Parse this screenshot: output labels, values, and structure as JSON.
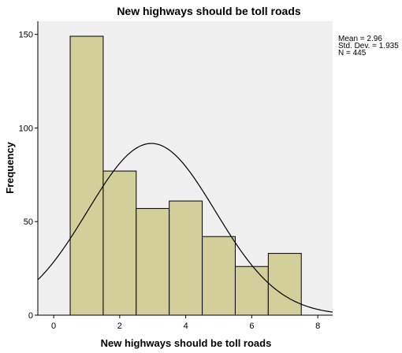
{
  "chart_data": {
    "type": "histogram",
    "title": "New highways should be toll roads",
    "xlabel": "New highways should be toll roads",
    "ylabel": "Frequency",
    "bins": [
      0.5,
      1.5,
      2.5,
      3.5,
      4.5,
      5.5,
      6.5,
      7.5
    ],
    "counts": [
      149,
      77,
      57,
      61,
      42,
      26,
      33
    ],
    "color": "#d3cf9b",
    "xlim": [
      -0.48,
      8.45
    ],
    "ylim": [
      0,
      157
    ],
    "xticks": [
      0,
      2,
      4,
      6,
      8
    ],
    "yticks": [
      0,
      50,
      100,
      150
    ],
    "annotations": [
      "Mean = 2.96",
      "Std. Dev. = 1.935",
      "N = 445"
    ],
    "normal_curve": {
      "mean": 2.96,
      "std": 1.935,
      "n": 445
    }
  }
}
